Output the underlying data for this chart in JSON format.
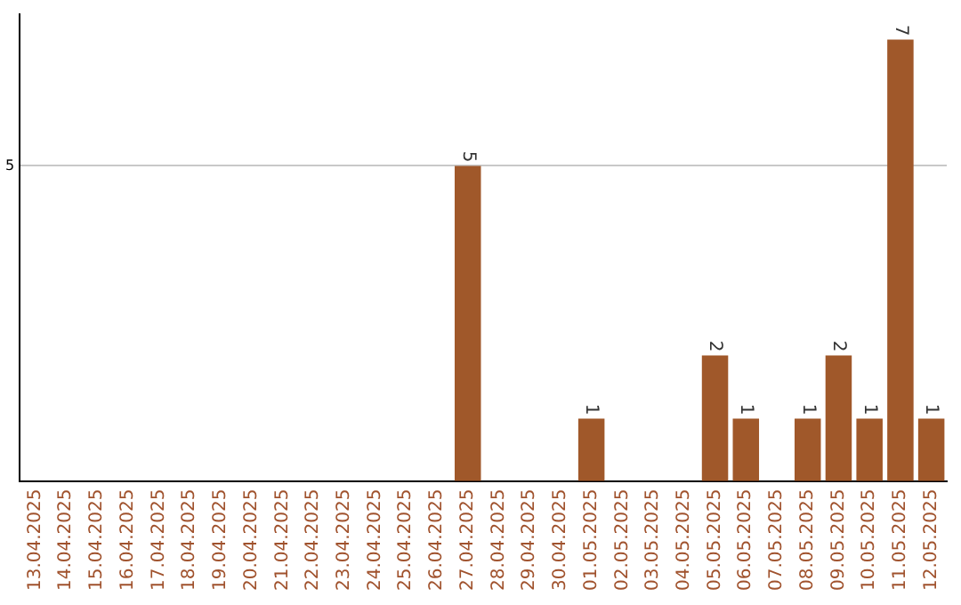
{
  "chart_data": {
    "type": "bar",
    "categories": [
      "13.04.2025",
      "14.04.2025",
      "15.04.2025",
      "16.04.2025",
      "17.04.2025",
      "18.04.2025",
      "19.04.2025",
      "20.04.2025",
      "21.04.2025",
      "22.04.2025",
      "23.04.2025",
      "24.04.2025",
      "25.04.2025",
      "26.04.2025",
      "27.04.2025",
      "28.04.2025",
      "29.04.2025",
      "30.04.2025",
      "01.05.2025",
      "02.05.2025",
      "03.05.2025",
      "04.05.2025",
      "05.05.2025",
      "06.05.2025",
      "07.05.2025",
      "08.05.2025",
      "09.05.2025",
      "10.05.2025",
      "11.05.2025",
      "12.05.2025"
    ],
    "values": [
      null,
      null,
      null,
      null,
      null,
      null,
      null,
      null,
      null,
      null,
      null,
      null,
      null,
      null,
      5,
      null,
      null,
      null,
      1,
      null,
      null,
      null,
      2,
      1,
      null,
      1,
      2,
      1,
      7,
      1
    ],
    "data_labels": true,
    "color": "#a0582a",
    "ylim": [
      0,
      7.4
    ],
    "yticks": [
      {
        "value": 0,
        "label": null
      },
      5
    ],
    "grid": "y"
  }
}
